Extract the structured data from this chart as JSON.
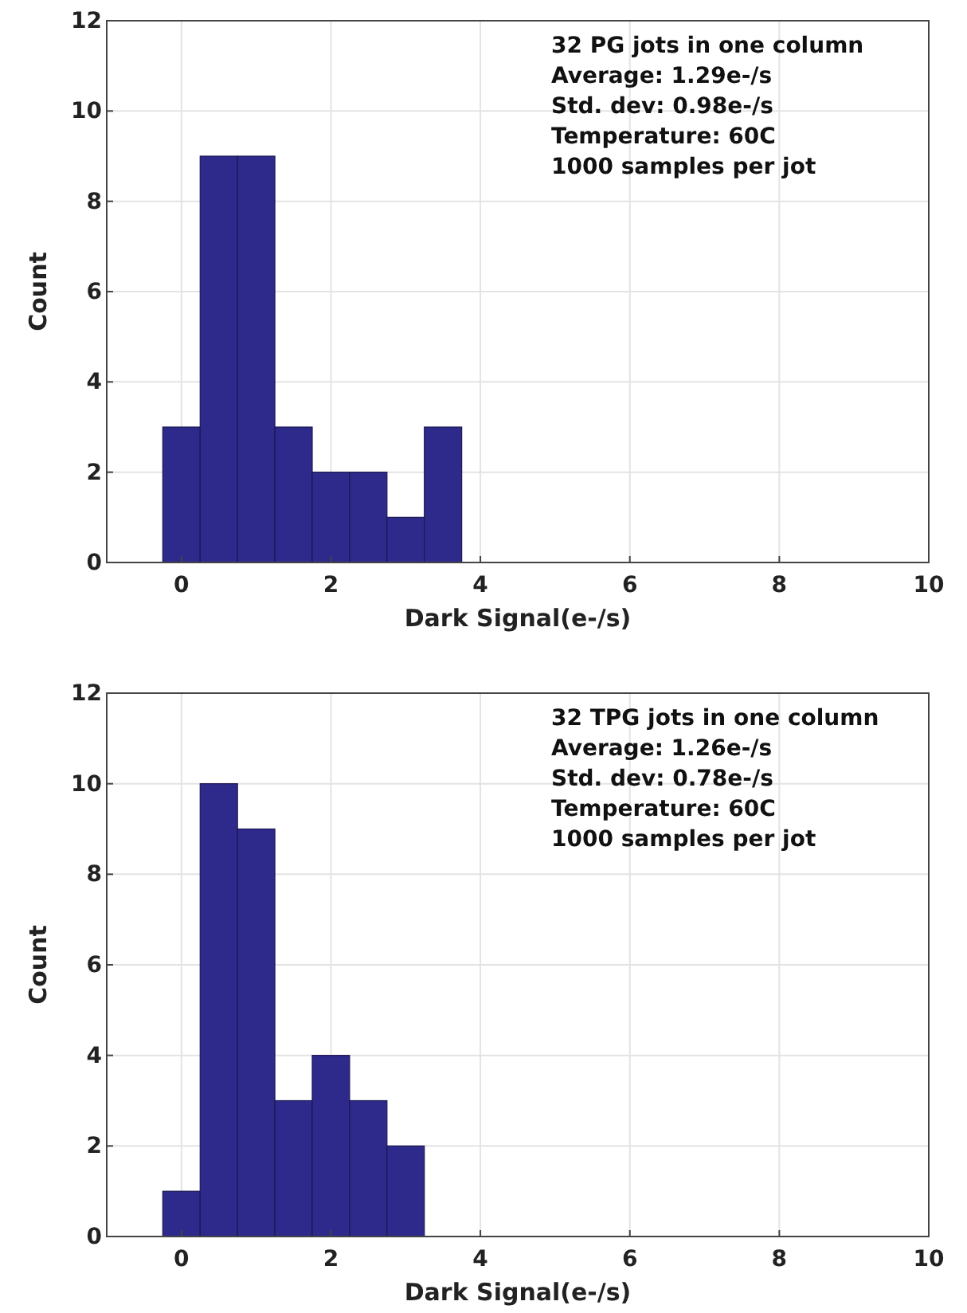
{
  "chart_data": [
    {
      "type": "histogram",
      "xlabel": "Dark Signal(e-/s)",
      "ylabel": "Count",
      "bins": [
        -0.25,
        0.25,
        0.75,
        1.25,
        1.75,
        2.25,
        2.75,
        3.25,
        3.75
      ],
      "values": [
        3,
        9,
        9,
        3,
        2,
        2,
        1,
        3
      ],
      "color": "#2e2a8c",
      "xlim": [
        -1,
        10
      ],
      "xticks": [
        0,
        2,
        4,
        6,
        8,
        10
      ],
      "ylim": [
        0,
        12
      ],
      "yticks": [
        0,
        2,
        4,
        6,
        8,
        10,
        12
      ],
      "grid": true,
      "annotations": [
        "32 PG jots in one column",
        "Average: 1.29e-/s",
        "Std. dev: 0.98e-/s",
        "Temperature: 60C",
        "1000 samples per jot"
      ]
    },
    {
      "type": "histogram",
      "xlabel": "Dark Signal(e-/s)",
      "ylabel": "Count",
      "bins": [
        -0.25,
        0.25,
        0.75,
        1.25,
        1.75,
        2.25,
        2.75,
        3.25
      ],
      "values": [
        1,
        10,
        9,
        3,
        4,
        3,
        2
      ],
      "color": "#2e2a8c",
      "xlim": [
        -1,
        10
      ],
      "xticks": [
        0,
        2,
        4,
        6,
        8,
        10
      ],
      "ylim": [
        0,
        12
      ],
      "yticks": [
        0,
        2,
        4,
        6,
        8,
        10,
        12
      ],
      "grid": true,
      "annotations": [
        "32 TPG jots in one column",
        "Average: 1.26e-/s",
        "Std. dev: 0.78e-/s",
        "Temperature: 60C",
        "1000 samples per jot"
      ]
    }
  ]
}
